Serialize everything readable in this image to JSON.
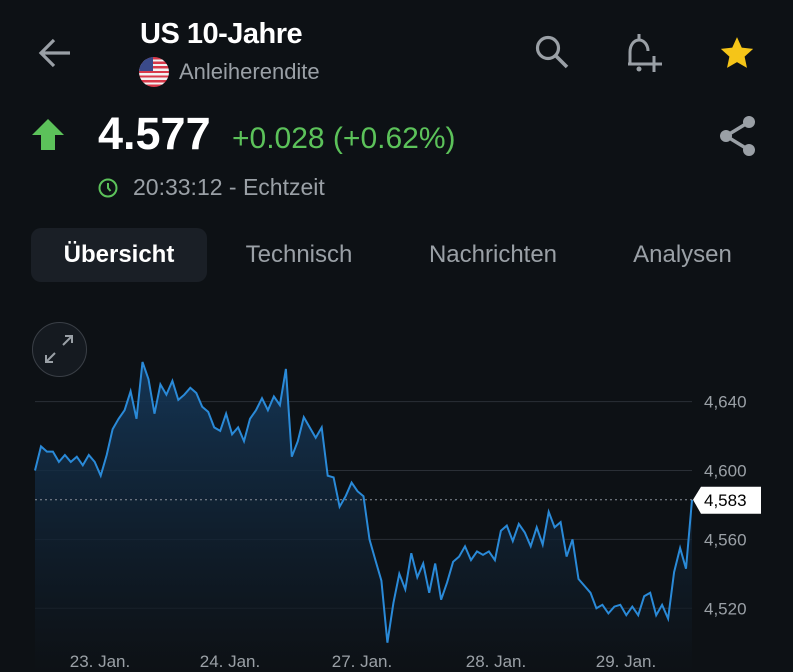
{
  "header": {
    "title": "US 10-Jahre",
    "subtitle": "Anleiherendite",
    "icons": [
      "arrow-left-icon",
      "search-icon",
      "bell-plus-icon",
      "star-icon"
    ],
    "favorite_color": "#f5c518"
  },
  "quote": {
    "price": "4.577",
    "change": "+0.028 (+0.62%)",
    "direction": "up",
    "up_color": "#5cc25a",
    "time": "20:33:12 - Echtzeit"
  },
  "tabs": [
    {
      "label": "Übersicht",
      "active": true
    },
    {
      "label": "Technisch",
      "active": false
    },
    {
      "label": "Nachrichten",
      "active": false
    },
    {
      "label": "Analysen",
      "active": false
    }
  ],
  "chart_data": {
    "type": "area",
    "line_color": "#2a8ad8",
    "x_tick_labels": [
      "23. Jan.",
      "24. Jan.",
      "27. Jan.",
      "28. Jan.",
      "29. Jan."
    ],
    "y_ticks": [
      4.64,
      4.6,
      4.56,
      4.52
    ],
    "y_tick_labels": [
      "4,640",
      "4,600",
      "4,560",
      "4,520"
    ],
    "ylim": [
      4.483,
      4.699
    ],
    "grid": true,
    "last_value": 4.583,
    "last_value_label": "4,583",
    "values": [
      4.6,
      4.614,
      4.611,
      4.611,
      4.605,
      4.609,
      4.605,
      4.608,
      4.603,
      4.609,
      4.605,
      4.597,
      4.609,
      4.624,
      4.63,
      4.635,
      4.646,
      4.63,
      4.663,
      4.653,
      4.633,
      4.65,
      4.644,
      4.652,
      4.641,
      4.644,
      4.648,
      4.645,
      4.637,
      4.634,
      4.625,
      4.623,
      4.633,
      4.621,
      4.625,
      4.617,
      4.63,
      4.635,
      4.642,
      4.635,
      4.643,
      4.638,
      4.659,
      4.608,
      4.617,
      4.631,
      4.625,
      4.619,
      4.625,
      4.597,
      4.596,
      4.579,
      4.585,
      4.593,
      4.588,
      4.585,
      4.56,
      4.548,
      4.536,
      4.5,
      4.523,
      4.54,
      4.531,
      4.552,
      4.538,
      4.546,
      4.529,
      4.546,
      4.525,
      4.535,
      4.547,
      4.55,
      4.556,
      4.548,
      4.553,
      4.551,
      4.553,
      4.548,
      4.565,
      4.568,
      4.559,
      4.569,
      4.564,
      4.556,
      4.567,
      4.557,
      4.576,
      4.567,
      4.57,
      4.55,
      4.56,
      4.537,
      4.533,
      4.529,
      4.52,
      4.522,
      4.517,
      4.521,
      4.522,
      4.516,
      4.521,
      4.516,
      4.527,
      4.529,
      4.516,
      4.522,
      4.514,
      4.541,
      4.555,
      4.543,
      4.583
    ]
  }
}
